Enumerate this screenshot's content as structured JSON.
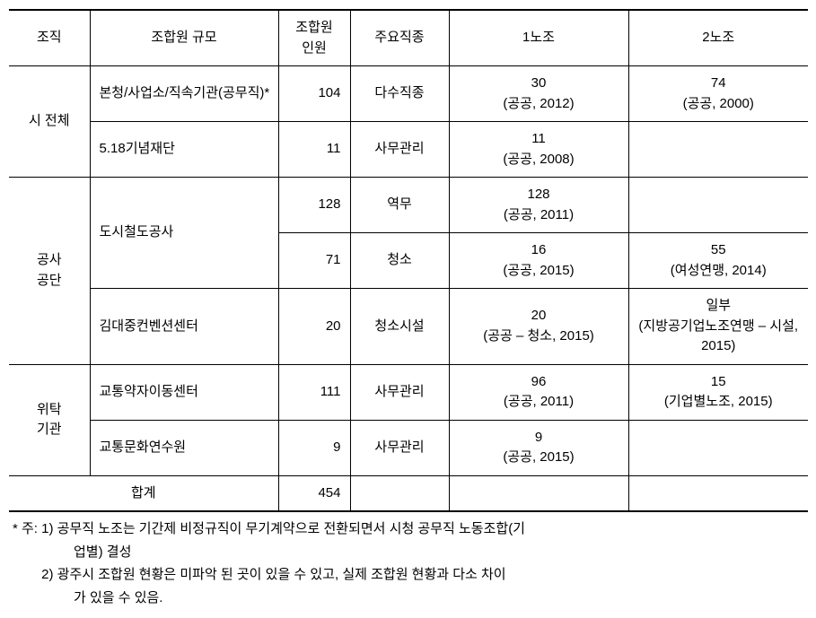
{
  "headers": {
    "org": "조직",
    "scale": "조합원 규모",
    "count": "조합원\n인원",
    "job": "주요직종",
    "union1": "1노조",
    "union2": "2노조"
  },
  "rows": [
    {
      "org": "시 전체",
      "org_rowspan": 2,
      "scale": "본청/사업소/직속기관(공무직)*",
      "count": "104",
      "job": "다수직종",
      "u1": "30\n(공공, 2012)",
      "u2": "74\n(공공, 2000)"
    },
    {
      "scale": "5.18기념재단",
      "count": "11",
      "job": "사무관리",
      "u1": "11\n(공공, 2008)",
      "u2": ""
    },
    {
      "org": "공사\n공단",
      "org_rowspan": 3,
      "scale": "도시철도공사",
      "scale_rowspan": 2,
      "count": "128",
      "job": "역무",
      "u1": "128\n(공공, 2011)",
      "u2": ""
    },
    {
      "count": "71",
      "job": "청소",
      "u1": "16\n(공공, 2015)",
      "u2": "55\n(여성연맹, 2014)"
    },
    {
      "scale": "김대중컨벤션센터",
      "count": "20",
      "job": "청소시설",
      "u1": "20\n(공공 – 청소, 2015)",
      "u2": "일부\n(지방공기업노조연맹 – 시설, 2015)"
    },
    {
      "org": "위탁\n기관",
      "org_rowspan": 2,
      "scale": "교통약자이동센터",
      "count": "111",
      "job": "사무관리",
      "u1": "96\n(공공, 2011)",
      "u2": "15\n(기업별노조, 2015)"
    },
    {
      "scale": "교통문화연수원",
      "count": "9",
      "job": "사무관리",
      "u1": "9\n(공공, 2015)",
      "u2": ""
    }
  ],
  "total": {
    "label": "합계",
    "count": "454"
  },
  "notes": {
    "prefix": "* 주: ",
    "n1a": "1) 공무직 노조는 기간제 비정규직이 무기계약으로 전환되면서 시청 공무직 노동조합(기",
    "n1b": "업별) 결성",
    "n2a": "2) 광주시 조합원 현황은 미파악 된 곳이 있을 수 있고, 실제 조합원 현황과 다소 차이",
    "n2b": "가 있을 수 있음."
  }
}
